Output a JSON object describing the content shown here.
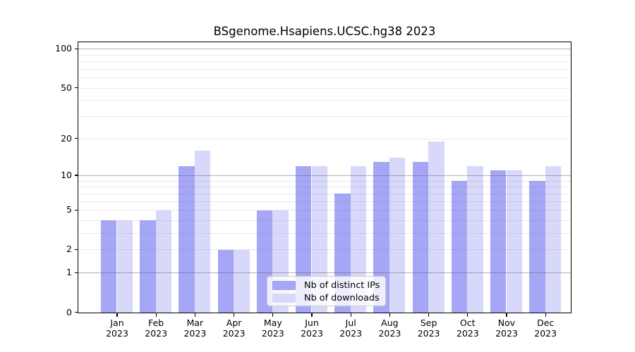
{
  "chart_data": {
    "type": "bar",
    "title": "BSgenome.Hsapiens.UCSC.hg38 2023",
    "categories": [
      "Jan 2023",
      "Feb 2023",
      "Mar 2023",
      "Apr 2023",
      "May 2023",
      "Jun 2023",
      "Jul 2023",
      "Aug 2023",
      "Sep 2023",
      "Oct 2023",
      "Nov 2023",
      "Dec 2023"
    ],
    "series": [
      {
        "name": "Nb of distinct IPs",
        "color": "#a6a6f7",
        "values": [
          4,
          4,
          12,
          2,
          5,
          12,
          7,
          13,
          13,
          9,
          11,
          9
        ]
      },
      {
        "name": "Nb of downloads",
        "color": "#d8d8fa",
        "values": [
          4,
          5,
          16,
          2,
          5,
          12,
          12,
          14,
          19,
          12,
          11,
          12
        ]
      }
    ],
    "xlabel": "",
    "ylabel": "",
    "yscale": "log1p",
    "ylim": [
      0,
      100
    ],
    "ytick_labels": [
      0,
      1,
      2,
      5,
      10,
      20,
      50,
      100
    ],
    "major_gridlines": [
      1,
      10,
      100
    ],
    "minor_gridlines": [
      2,
      3,
      4,
      5,
      6,
      7,
      8,
      9,
      20,
      30,
      40,
      50,
      60,
      70,
      80,
      90
    ],
    "grid": true,
    "legend_position": "lower center"
  },
  "colors": {
    "axis": "#000000",
    "legend_border": "#cccccc",
    "legend_background": "rgba(255,255,255,0.8)"
  }
}
